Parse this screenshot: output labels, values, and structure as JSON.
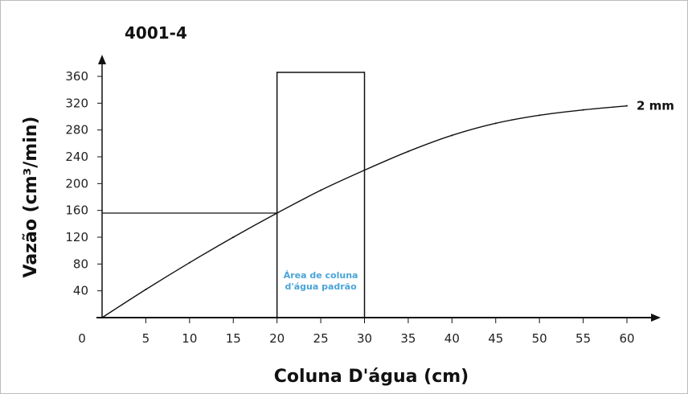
{
  "chart_data": {
    "type": "line",
    "title": "4001-4",
    "xlabel": "Coluna D'água (cm)",
    "ylabel": "Vazão (cm³/min)",
    "xlim": [
      0,
      60
    ],
    "ylim": [
      0,
      360
    ],
    "x_ticks": [
      0,
      5,
      10,
      15,
      20,
      25,
      30,
      35,
      40,
      45,
      50,
      55,
      60
    ],
    "y_ticks": [
      40,
      80,
      120,
      160,
      200,
      240,
      280,
      320,
      360
    ],
    "series": [
      {
        "name": "2 mm",
        "x": [
          0,
          5,
          10,
          15,
          20,
          25,
          30,
          35,
          40,
          45,
          50,
          55,
          60
        ],
        "y": [
          0,
          42,
          82,
          120,
          156,
          190,
          220,
          248,
          272,
          290,
          302,
          310,
          316
        ]
      }
    ],
    "reference_line": {
      "x": 20,
      "y": 156
    },
    "highlight_region": {
      "x_range": [
        20,
        30
      ],
      "y_top": 366,
      "label_lines": [
        "Área de coluna",
        "d'água padrão"
      ]
    },
    "grid": false,
    "legend": "inline-right"
  }
}
